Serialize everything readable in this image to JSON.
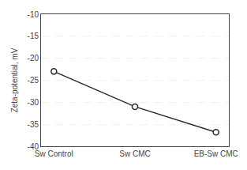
{
  "chart_data": {
    "type": "line",
    "categories": [
      "Sw Control",
      "Sw CMC",
      "EB-Sw CMC"
    ],
    "values": [
      -23.0,
      -31.0,
      -36.8
    ],
    "ylabel": "Zeta-potential, mV",
    "ylim": [
      -40,
      -10
    ],
    "yticks": [
      -40,
      -35,
      -30,
      -25,
      -20,
      -15,
      -10
    ],
    "color": "#2a2a2a",
    "marker": "circle",
    "grid": true
  }
}
